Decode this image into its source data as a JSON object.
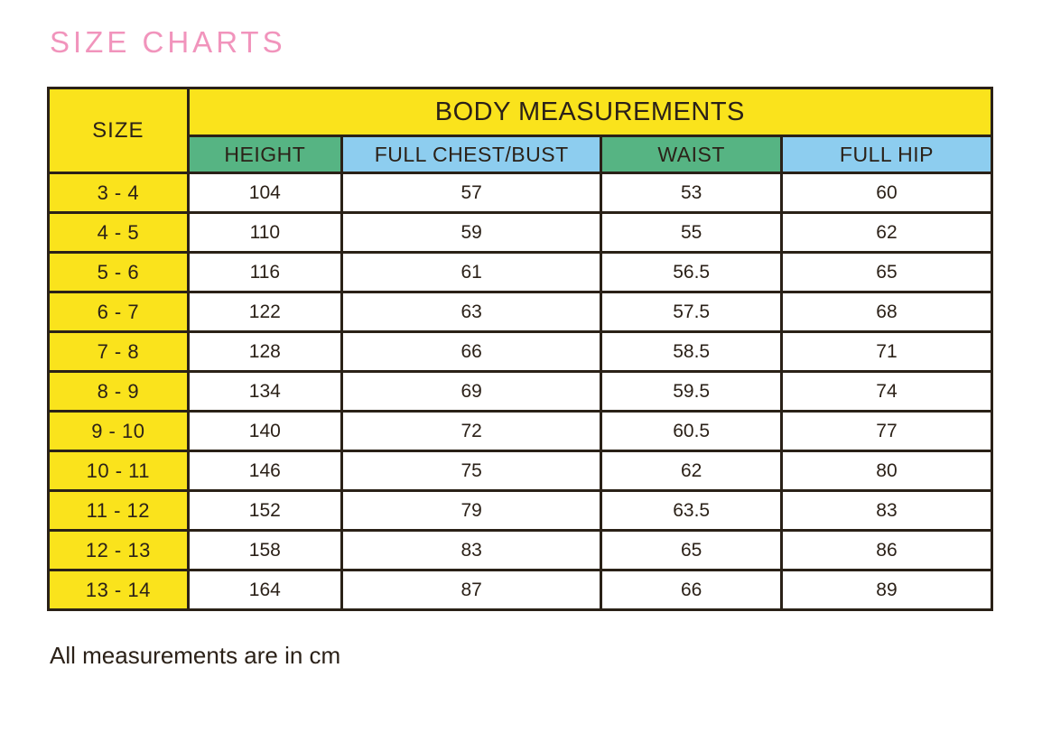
{
  "page": {
    "title": "SIZE CHARTS",
    "footnote": "All measurements are in cm"
  },
  "colors": {
    "title_pink": "#F194BC",
    "header_yellow": "#FAE31C",
    "header_green": "#56B483",
    "header_blue": "#8DCDEF",
    "border": "#2A2117",
    "text": "#2B2118"
  },
  "chart_data": {
    "type": "table",
    "title": "BODY MEASUREMENTS",
    "size_header": "SIZE",
    "columns": [
      "HEIGHT",
      "FULL CHEST/BUST",
      "WAIST",
      "FULL HIP"
    ],
    "units": "cm",
    "rows": [
      {
        "size": "3 - 4",
        "values": [
          "104",
          "57",
          "53",
          "60"
        ]
      },
      {
        "size": "4 - 5",
        "values": [
          "110",
          "59",
          "55",
          "62"
        ]
      },
      {
        "size": "5 - 6",
        "values": [
          "116",
          "61",
          "56.5",
          "65"
        ]
      },
      {
        "size": "6 - 7",
        "values": [
          "122",
          "63",
          "57.5",
          "68"
        ]
      },
      {
        "size": "7 - 8",
        "values": [
          "128",
          "66",
          "58.5",
          "71"
        ]
      },
      {
        "size": "8 - 9",
        "values": [
          "134",
          "69",
          "59.5",
          "74"
        ]
      },
      {
        "size": "9 - 10",
        "values": [
          "140",
          "72",
          "60.5",
          "77"
        ]
      },
      {
        "size": "10 - 11",
        "values": [
          "146",
          "75",
          "62",
          "80"
        ]
      },
      {
        "size": "11 - 12",
        "values": [
          "152",
          "79",
          "63.5",
          "83"
        ]
      },
      {
        "size": "12 - 13",
        "values": [
          "158",
          "83",
          "65",
          "86"
        ]
      },
      {
        "size": "13 - 14",
        "values": [
          "164",
          "87",
          "66",
          "89"
        ]
      }
    ]
  }
}
